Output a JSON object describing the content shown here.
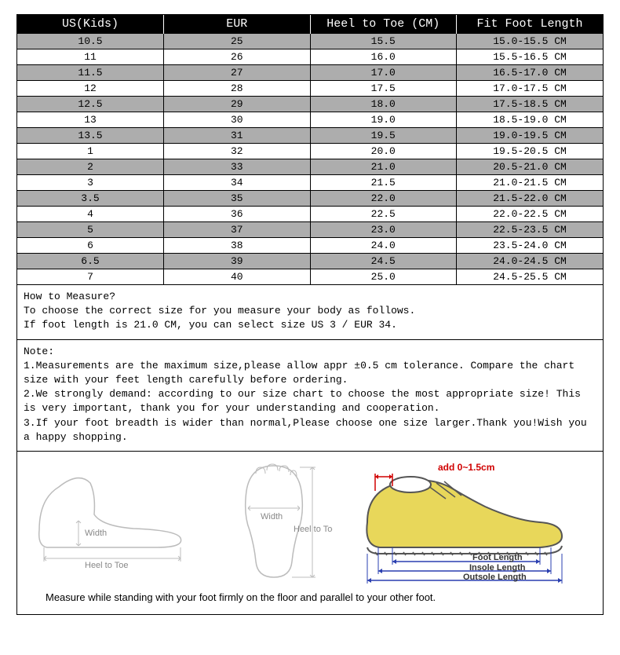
{
  "table": {
    "columns": [
      "US(Kids)",
      "EUR",
      "Heel to Toe (CM)",
      "Fit Foot Length"
    ],
    "header_bg": "#000000",
    "header_fg": "#ffffff",
    "alt_row_bg": "#adadad",
    "row_bg": "#ffffff",
    "border_color": "#000000",
    "font_family": "Courier New",
    "cell_fontsize": 13,
    "header_fontsize": 15,
    "rows": [
      [
        "10.5",
        "25",
        "15.5",
        "15.0-15.5 CM"
      ],
      [
        "11",
        "26",
        "16.0",
        "15.5-16.5 CM"
      ],
      [
        "11.5",
        "27",
        "17.0",
        "16.5-17.0 CM"
      ],
      [
        "12",
        "28",
        "17.5",
        "17.0-17.5 CM"
      ],
      [
        "12.5",
        "29",
        "18.0",
        "17.5-18.5 CM"
      ],
      [
        "13",
        "30",
        "19.0",
        "18.5-19.0 CM"
      ],
      [
        "13.5",
        "31",
        "19.5",
        "19.0-19.5 CM"
      ],
      [
        "1",
        "32",
        "20.0",
        "19.5-20.5 CM"
      ],
      [
        "2",
        "33",
        "21.0",
        "20.5-21.0 CM"
      ],
      [
        "3",
        "34",
        "21.5",
        "21.0-21.5 CM"
      ],
      [
        "3.5",
        "35",
        "22.0",
        "21.5-22.0 CM"
      ],
      [
        "4",
        "36",
        "22.5",
        "22.0-22.5 CM"
      ],
      [
        "5",
        "37",
        "23.0",
        "22.5-23.5 CM"
      ],
      [
        "6",
        "38",
        "24.0",
        "23.5-24.0 CM"
      ],
      [
        "6.5",
        "39",
        "24.5",
        "24.0-24.5 CM"
      ],
      [
        "7",
        "40",
        "25.0",
        "24.5-25.5 CM"
      ]
    ]
  },
  "how_to": {
    "title": "How to Measure?",
    "line1": "To choose the correct size for you measure your body as follows.",
    "line2": "If foot length is 21.0 CM, you can select size US 3 / EUR 34."
  },
  "note": {
    "title": "Note:",
    "item1": "1.Measurements are the maximum size,please allow appr ±0.5 cm tolerance. Compare the chart size with your feet length carefully before ordering.",
    "item2": "2.We strongly demand: according to our size chart to choose the most appropriate size! This is very important, thank you for your understanding and cooperation.",
    "item3": "3.If your foot breadth is wider than normal,Please choose one size larger.Thank you!Wish you a happy shopping."
  },
  "diagrams": {
    "foot_side": {
      "width_label": "Width",
      "heel_toe_label": "Heel to Toe",
      "stroke": "#bcbcbc"
    },
    "foot_top": {
      "width_label": "Width",
      "heel_toe_label": "Heel to Toe",
      "stroke": "#bcbcbc"
    },
    "shoe": {
      "add_label": "add 0~1.5cm",
      "foot_length_label": "Foot Length",
      "insole_label": "Insole Length",
      "outsole_label": "Outsole Length",
      "shoe_fill": "#e8d75a",
      "shoe_stroke": "#555555",
      "arrow_color": "#2a3fb0",
      "red": "#d00000"
    }
  },
  "caption": "Measure while standing with your foot firmly on the floor and parallel to your other foot."
}
